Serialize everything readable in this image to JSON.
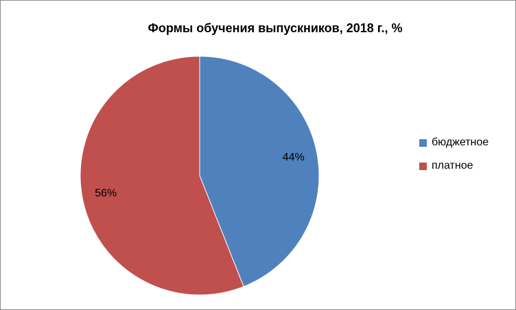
{
  "chart_data": {
    "type": "pie",
    "title": "Формы обучения выпускников, 2018 г., %",
    "categories": [
      "бюджетное",
      "платное"
    ],
    "values": [
      44,
      56
    ],
    "labels": [
      "44%",
      "56%"
    ],
    "colors": [
      "#4f81bd",
      "#c0504d"
    ],
    "legend_position": "right"
  }
}
